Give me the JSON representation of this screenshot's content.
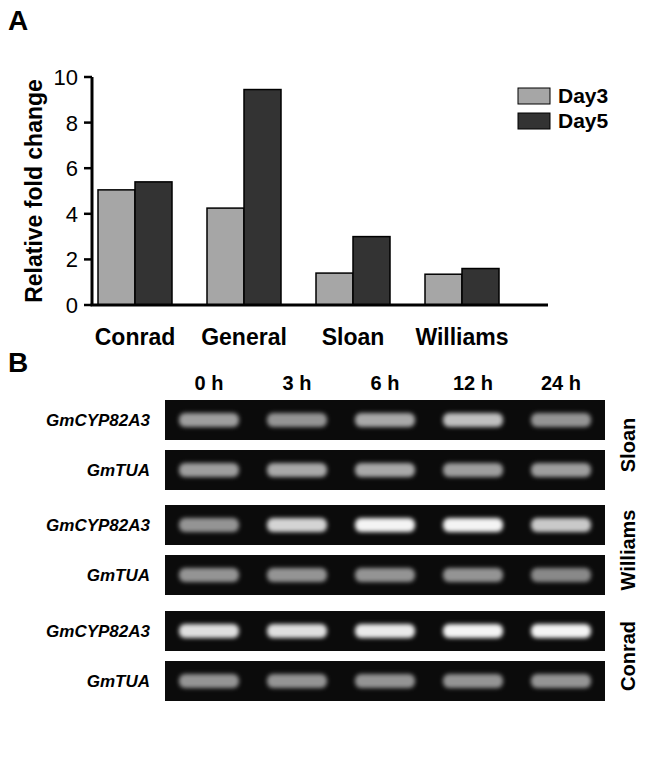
{
  "panel_labels": [
    "A",
    "B"
  ],
  "chart_data": {
    "type": "bar",
    "y_label": "Relative fold change",
    "categories": [
      "Conrad",
      "General",
      "Sloan",
      "Williams"
    ],
    "series": [
      {
        "name": "Day3",
        "color": "#a6a6a6",
        "values": [
          5.05,
          4.25,
          1.4,
          1.35
        ]
      },
      {
        "name": "Day5",
        "color": "#333333",
        "values": [
          5.4,
          9.45,
          3.0,
          1.6
        ]
      }
    ],
    "ylim": [
      0,
      10
    ],
    "yticks": [
      0,
      2,
      4,
      6,
      8,
      10
    ],
    "legend": "top-right",
    "grid": false
  },
  "gel": {
    "timepoints": [
      "0 h",
      "3 h",
      "6 h",
      "12 h",
      "24 h"
    ],
    "groups": [
      {
        "cultivar": "Sloan",
        "rows": [
          {
            "gene": "GmCYP82A3",
            "bands": [
              0.55,
              0.5,
              0.6,
              0.7,
              0.5
            ]
          },
          {
            "gene": "GmTUA",
            "bands": [
              0.55,
              0.6,
              0.6,
              0.55,
              0.55
            ]
          }
        ]
      },
      {
        "cultivar": "Williams",
        "rows": [
          {
            "gene": "GmCYP82A3",
            "bands": [
              0.5,
              0.8,
              0.95,
              0.95,
              0.75
            ]
          },
          {
            "gene": "GmTUA",
            "bands": [
              0.5,
              0.5,
              0.5,
              0.5,
              0.45
            ]
          }
        ]
      },
      {
        "cultivar": "Conrad",
        "rows": [
          {
            "gene": "GmCYP82A3",
            "bands": [
              0.85,
              0.85,
              0.9,
              0.95,
              0.95
            ]
          },
          {
            "gene": "GmTUA",
            "bands": [
              0.5,
              0.5,
              0.5,
              0.5,
              0.5
            ]
          }
        ]
      }
    ]
  }
}
